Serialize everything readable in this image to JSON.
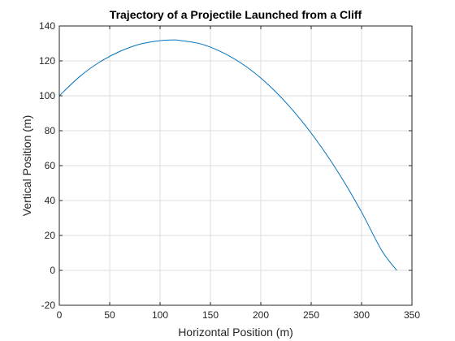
{
  "chart_data": {
    "type": "line",
    "title": "Trajectory of a Projectile Launched from a Cliff",
    "xlabel": "Horizontal Position (m)",
    "ylabel": "Vertical Position (m)",
    "xlim": [
      0,
      350
    ],
    "ylim": [
      -20,
      140
    ],
    "x_ticks": [
      0,
      50,
      100,
      150,
      200,
      250,
      300,
      350
    ],
    "y_ticks": [
      -20,
      0,
      20,
      40,
      60,
      80,
      100,
      120,
      140
    ],
    "grid": true,
    "legend": "none",
    "colors": {
      "line": "#0072BD",
      "grid": "#DCDCDC",
      "axis": "#262626"
    },
    "series": [
      {
        "x": [
          0,
          20,
          40,
          60,
          80,
          100,
          112,
          120,
          140,
          160,
          180,
          200,
          220,
          240,
          260,
          280,
          300,
          320,
          335
        ],
        "y": [
          100,
          110.9,
          119.3,
          125.4,
          129.6,
          131.6,
          132,
          131.7,
          129.8,
          125.4,
          118.9,
          110.2,
          99.2,
          86.0,
          70.7,
          53.2,
          33.4,
          11.4,
          0
        ]
      }
    ]
  }
}
